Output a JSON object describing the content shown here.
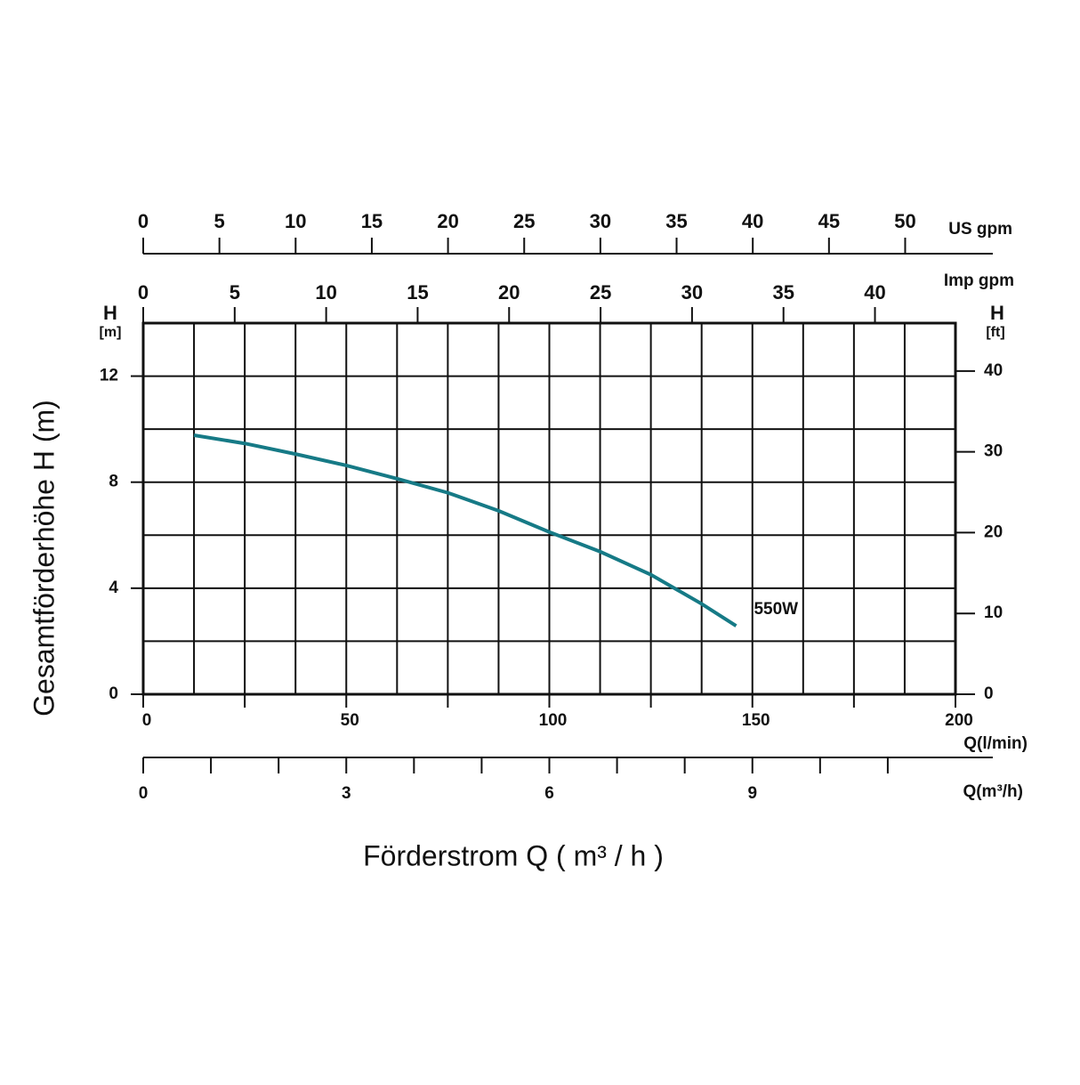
{
  "chart_data": {
    "type": "line",
    "x_title": "Förderstrom Q ( m³ / h )",
    "y_title": "Gesamtförderhöhe  H (m)",
    "x_label": "Q(l/min)",
    "y_label": "H",
    "y_unit": "[m]",
    "y2_label": "H",
    "y2_unit": "[ft]",
    "x": [
      12.5,
      25,
      37.5,
      50,
      62.5,
      75,
      87.5,
      100,
      112.5,
      125,
      137.5,
      146
    ],
    "series": [
      {
        "name": "550W",
        "color": "#167a86",
        "values": [
          9.77,
          9.46,
          9.06,
          8.63,
          8.13,
          7.6,
          6.92,
          6.12,
          5.38,
          4.51,
          3.41,
          2.58
        ]
      }
    ],
    "xlim": [
      0,
      200
    ],
    "xticks": [
      0,
      50,
      100,
      150,
      200
    ],
    "xminor": [
      25,
      75,
      125,
      175
    ],
    "xgrid": [
      12.5,
      25,
      37.5,
      50,
      62.5,
      75,
      87.5,
      100,
      112.5,
      125,
      137.5,
      150,
      162.5,
      175,
      187.5
    ],
    "ylim": [
      0,
      14
    ],
    "yticks": [
      0,
      4,
      8,
      12
    ],
    "ygrid": [
      2,
      4,
      6,
      8,
      10,
      12
    ],
    "y2lim": [
      0,
      45.93
    ],
    "y2ticks": [
      0,
      10,
      20,
      30,
      40
    ],
    "top_axes": [
      {
        "label": "US gpm",
        "lim": [
          0,
          53.3
        ],
        "ticks": [
          0,
          5,
          10,
          15,
          20,
          25,
          30,
          35,
          40,
          45,
          50
        ]
      },
      {
        "label": "Imp gpm",
        "lim": [
          0,
          44.4
        ],
        "ticks": [
          0,
          5,
          10,
          15,
          20,
          25,
          30,
          35,
          40
        ]
      }
    ],
    "x3_label": "Q(m³/h)",
    "x3lim": [
      0,
      12
    ],
    "x3ticks": [
      0,
      3,
      6,
      9
    ],
    "x3minor": [
      1,
      2,
      4,
      5,
      7,
      8,
      10,
      11
    ],
    "grid": true
  }
}
